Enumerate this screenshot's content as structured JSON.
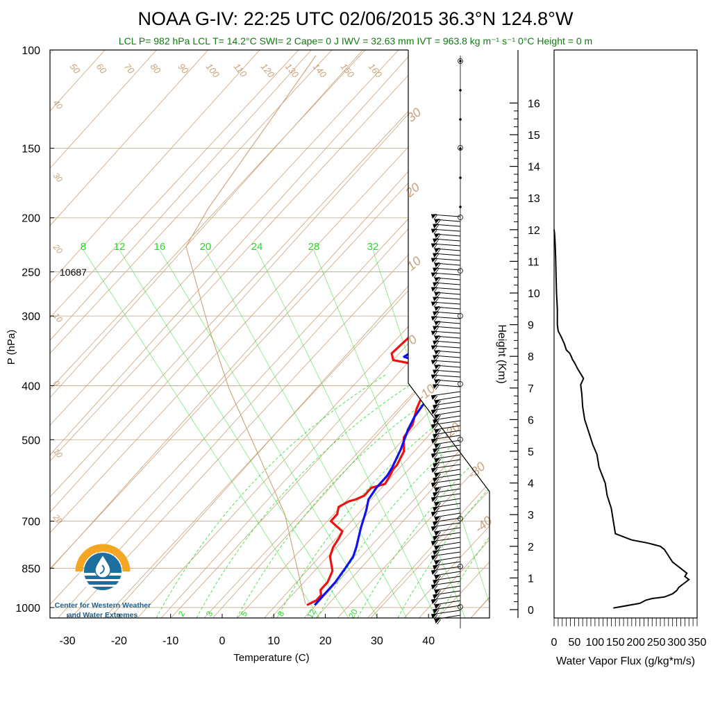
{
  "header": {
    "title": "NOAA G-IV: 22:25 UTC 02/06/2015  36.3°N 124.8°W",
    "subtitle": "LCL P= 982 hPa  LCL T= 14.2°C  SWI= 2  Cape= 0 J  IWV = 32.63 mm  IVT = 963.8 kg m⁻¹ s⁻¹  0°C Height = 0 m"
  },
  "skewt": {
    "ylabel": "P (hPa)",
    "xlabel": "Temperature (C)",
    "pressure_ticks": [
      100,
      150,
      200,
      250,
      300,
      400,
      500,
      700,
      850,
      1000
    ],
    "temp_ticks": [
      -30,
      -20,
      -10,
      0,
      10,
      20,
      30,
      40
    ],
    "annotation": "10687",
    "mixing_ratio_top_labels": [
      "8",
      "12",
      "16",
      "20",
      "24",
      "28",
      "32"
    ],
    "mixing_ratio_bottom_labels": [
      "2",
      "3",
      "5",
      "8",
      "12",
      "20"
    ],
    "isotherm_labels": [
      "30",
      "20",
      "10",
      "0",
      "-10",
      "-20",
      "-30",
      "-40"
    ],
    "adiabat_labels": [
      "50",
      "60",
      "70",
      "80",
      "90",
      "100",
      "110",
      "120",
      "130",
      "140",
      "150",
      "160"
    ],
    "left_adiabat_labels": [
      "40",
      "30",
      "20",
      "10",
      "0",
      "10",
      "20"
    ]
  },
  "flux": {
    "ylabel": "Height (Km)",
    "xlabel": "Water Vapor Flux (g/kg*m/s)",
    "height_ticks": [
      "0",
      "1",
      "2",
      "3",
      "4",
      "5",
      "6",
      "7",
      "8",
      "9",
      "10",
      "11",
      "12",
      "13",
      "14",
      "15",
      "16"
    ],
    "flux_ticks": [
      "0",
      "50",
      "100",
      "150",
      "200",
      "250",
      "300",
      "350"
    ]
  },
  "logo": {
    "line1": "Center for Western Weather",
    "line2": "and Water Extremes"
  },
  "colors": {
    "temperature": "#ee1111",
    "dewpoint": "#1111ee",
    "isotherms": "#c9a27a",
    "mixing_ratio": "#22dd22",
    "logo_orange": "#f5a623",
    "logo_blue": "#1d6fa0"
  },
  "chart_data": [
    {
      "type": "line",
      "title": "NOAA G-IV: 22:25 UTC 02/06/2015  36.3°N 124.8°W",
      "xlabel": "Temperature (C)",
      "ylabel": "P (hPa)",
      "xlim": [
        -33,
        53
      ],
      "ylim": [
        1000,
        100
      ],
      "series": [
        {
          "role": "temperature",
          "x": [
            16,
            17,
            17,
            16,
            16,
            15,
            12,
            11,
            10.5,
            10,
            6,
            6,
            5,
            6,
            7,
            8,
            8,
            10,
            9.5,
            9,
            9,
            8.5,
            8,
            5.5,
            5,
            3,
            2,
            2.5,
            1.5,
            -2,
            -6,
            -10,
            -11.5,
            -11,
            -10.5,
            -9,
            -8,
            -7,
            -6,
            -5,
            -5,
            -4.5,
            -4,
            -4
          ],
          "y": [
            990,
            970,
            950,
            930,
            900,
            860,
            810,
            780,
            750,
            730,
            700,
            680,
            660,
            645,
            640,
            630,
            610,
            600,
            580,
            565,
            555,
            540,
            525,
            495,
            470,
            440,
            420,
            405,
            400,
            380,
            365,
            360,
            350,
            330,
            315,
            300,
            280,
            260,
            245,
            235,
            225,
            215,
            205,
            195
          ]
        },
        {
          "role": "dewpoint",
          "x": [
            17.5,
            17.5,
            17.5,
            17,
            16.5,
            15.5,
            13,
            11,
            9.5,
            9,
            9,
            8.5,
            7,
            5,
            4,
            3.5,
            -1,
            -3,
            -5,
            -8.5,
            -6,
            -5,
            -5,
            -4.5,
            -4,
            -3.5,
            -2.5,
            -2,
            -2,
            -1
          ],
          "y": [
            990,
            950,
            900,
            850,
            810,
            780,
            720,
            670,
            640,
            610,
            580,
            560,
            520,
            480,
            455,
            430,
            380,
            370,
            362,
            355,
            330,
            310,
            290,
            270,
            250,
            235,
            220,
            210,
            200,
            195
          ]
        }
      ]
    },
    {
      "type": "line",
      "xlabel": "Water Vapor Flux (g/kg*m/s)",
      "ylabel": "Height (Km)",
      "xlim": [
        0,
        350
      ],
      "ylim": [
        0,
        16.5
      ],
      "series": [
        {
          "role": "water_vapor_flux",
          "x": [
            145,
            210,
            225,
            240,
            270,
            290,
            300,
            305,
            315,
            325,
            330,
            320,
            325,
            310,
            290,
            280,
            270,
            260,
            245,
            230,
            190,
            150,
            145,
            140,
            130,
            125,
            110,
            105,
            95,
            85,
            75,
            70,
            68,
            65,
            72,
            58,
            50,
            45,
            42,
            38,
            30,
            25,
            18,
            10,
            8,
            8,
            6,
            5,
            4,
            3,
            2,
            1,
            0
          ],
          "y": [
            0.05,
            0.2,
            0.3,
            0.35,
            0.4,
            0.5,
            0.6,
            0.7,
            0.8,
            0.9,
            0.95,
            1.05,
            1.15,
            1.3,
            1.5,
            1.7,
            1.9,
            2.0,
            2.05,
            2.1,
            2.2,
            2.4,
            2.8,
            3.2,
            3.6,
            4.0,
            4.5,
            4.9,
            5.2,
            5.6,
            6.0,
            6.4,
            6.8,
            7.1,
            7.3,
            7.6,
            7.8,
            7.9,
            8.0,
            8.1,
            8.2,
            8.4,
            8.6,
            8.8,
            9.0,
            9.5,
            10.0,
            10.5,
            11.0,
            11.4,
            11.7,
            11.9,
            12.0
          ]
        }
      ]
    }
  ]
}
